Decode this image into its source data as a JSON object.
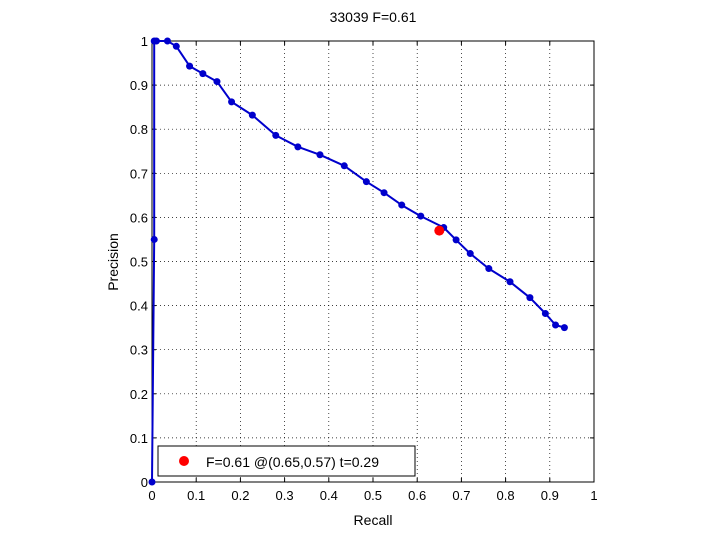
{
  "chart_data": {
    "type": "line",
    "title": "33039 F=0.61",
    "xlabel": "Recall",
    "ylabel": "Precision",
    "xlim": [
      0,
      1
    ],
    "ylim": [
      0,
      1
    ],
    "x_ticks": [
      "0",
      "0.1",
      "0.2",
      "0.3",
      "0.4",
      "0.5",
      "0.6",
      "0.7",
      "0.8",
      "0.9",
      "1"
    ],
    "y_ticks": [
      "0",
      "0.1",
      "0.2",
      "0.3",
      "0.4",
      "0.5",
      "0.6",
      "0.7",
      "0.8",
      "0.9",
      "1"
    ],
    "grid": true,
    "grid_style": "dotted",
    "series": [
      {
        "color": "#0000cc",
        "marker": "dot",
        "x": [
          0.0,
          0.005,
          0.005,
          0.01,
          0.035,
          0.055,
          0.085,
          0.115,
          0.147,
          0.18,
          0.227,
          0.28,
          0.33,
          0.38,
          0.435,
          0.485,
          0.525,
          0.565,
          0.608,
          0.66,
          0.688,
          0.72,
          0.762,
          0.81,
          0.855,
          0.89,
          0.913,
          0.933
        ],
        "y": [
          0.0,
          0.55,
          1.0,
          1.0,
          1.0,
          0.988,
          0.943,
          0.926,
          0.908,
          0.862,
          0.832,
          0.786,
          0.76,
          0.742,
          0.717,
          0.681,
          0.656,
          0.628,
          0.603,
          0.577,
          0.549,
          0.518,
          0.484,
          0.454,
          0.418,
          0.382,
          0.356,
          0.35
        ]
      }
    ],
    "best_point": {
      "x": 0.65,
      "y": 0.57,
      "color": "#ff0000"
    },
    "legend": {
      "position": "bottom-left",
      "label": "F=0.61 @(0.65,0.57) t=0.29"
    }
  }
}
